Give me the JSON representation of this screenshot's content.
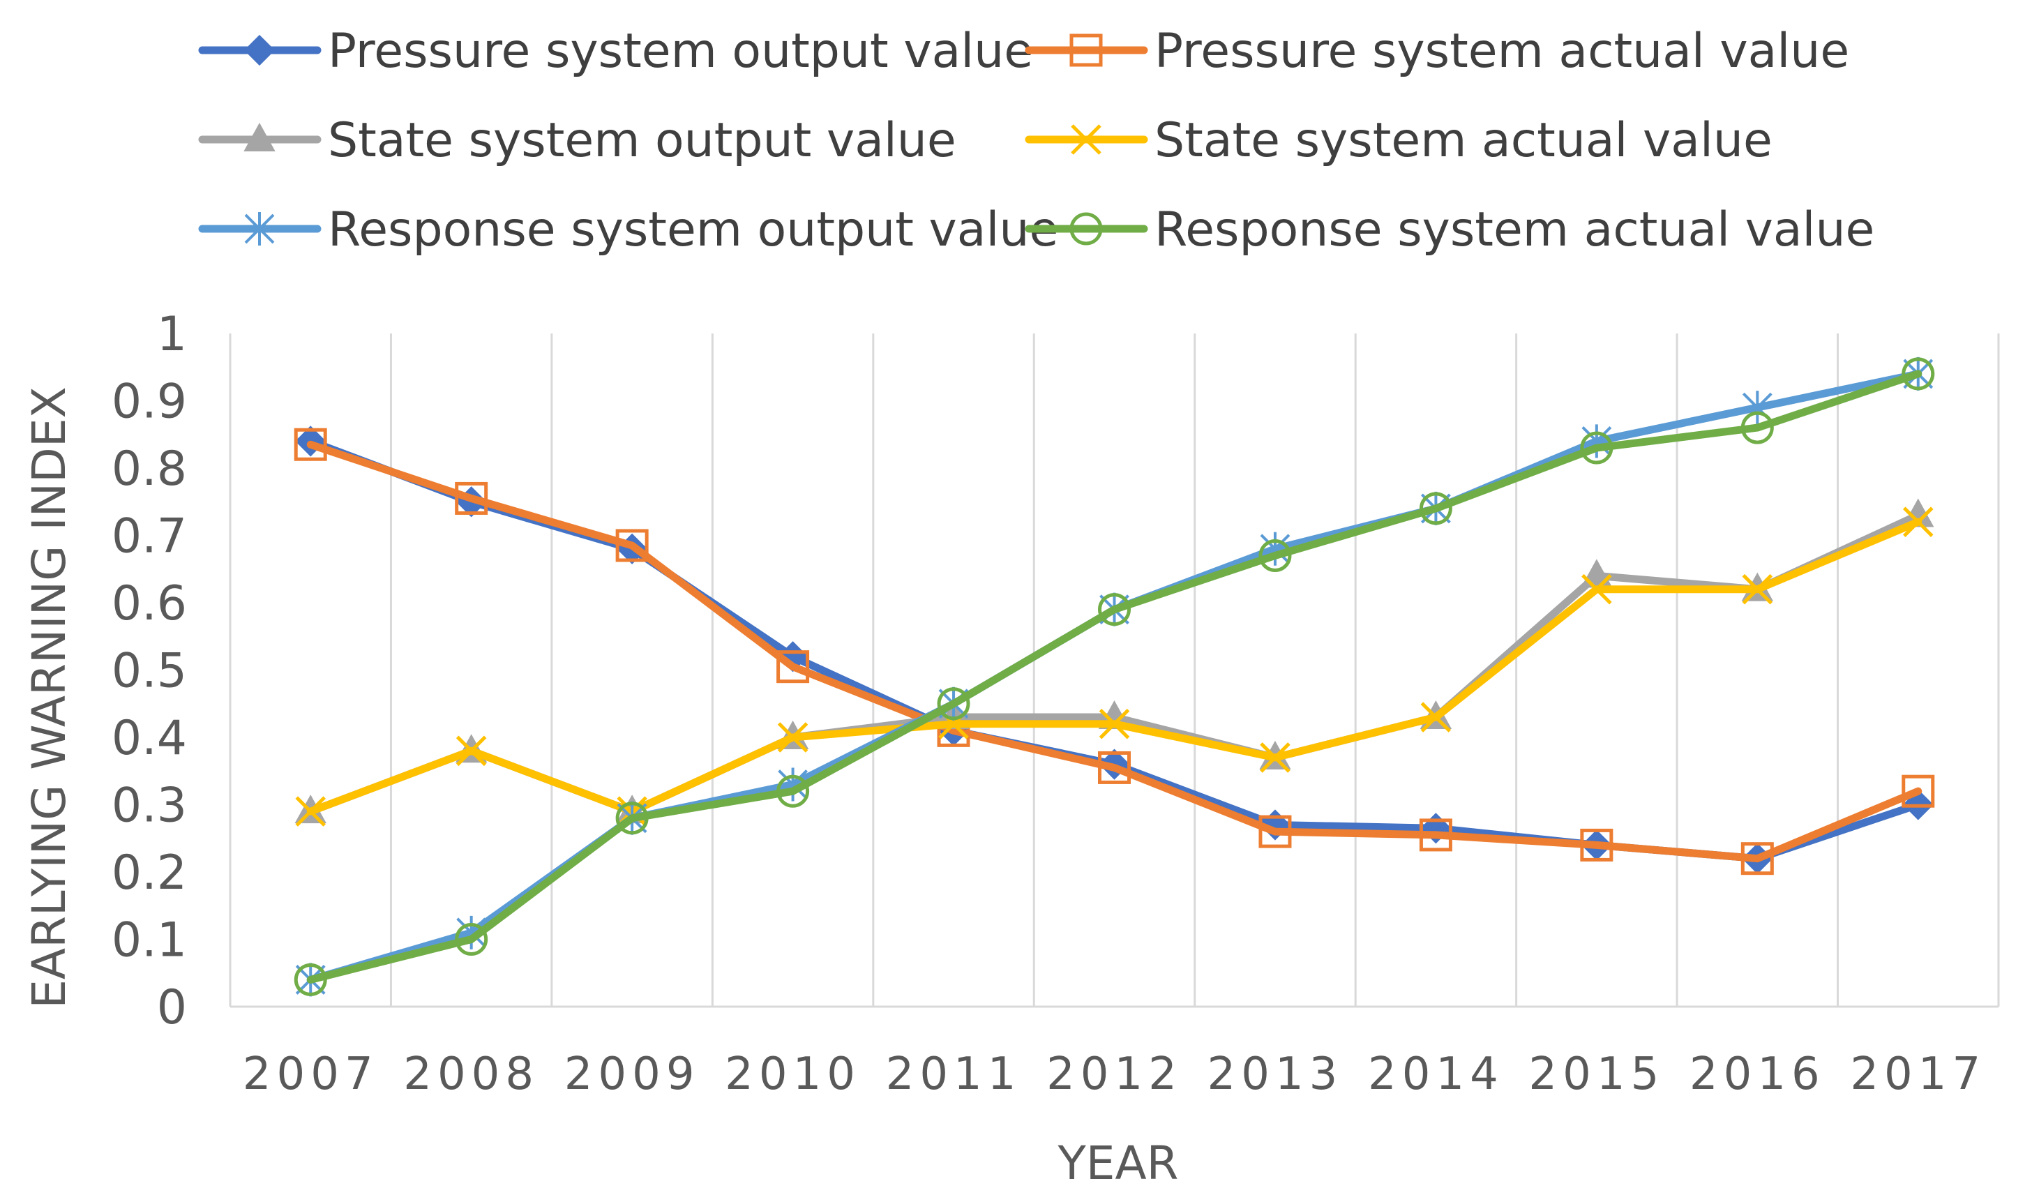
{
  "chart_data": {
    "type": "line",
    "title": "",
    "xlabel": "YEAR",
    "ylabel": "EARLYING WARNING INDEX",
    "categories": [
      "2007",
      "2008",
      "2009",
      "2010",
      "2011",
      "2012",
      "2013",
      "2014",
      "2015",
      "2016",
      "2017"
    ],
    "ylim": [
      0,
      1
    ],
    "yticks": [
      "0",
      "0.1",
      "0.2",
      "0.3",
      "0.4",
      "0.5",
      "0.6",
      "0.7",
      "0.8",
      "0.9",
      "1"
    ],
    "grid": "vertical",
    "legend_position": "top",
    "series": [
      {
        "name": "Pressure system output value",
        "color": "#4472C4",
        "marker": "diamond",
        "values": [
          0.84,
          0.75,
          0.68,
          0.52,
          0.41,
          0.36,
          0.27,
          0.265,
          0.24,
          0.22,
          0.3
        ]
      },
      {
        "name": "Pressure system actual value",
        "color": "#ED7D31",
        "marker": "square",
        "values": [
          0.835,
          0.755,
          0.685,
          0.505,
          0.41,
          0.355,
          0.26,
          0.255,
          0.24,
          0.22,
          0.32
        ]
      },
      {
        "name": "State system output value",
        "color": "#A5A5A5",
        "marker": "triangle",
        "values": [
          0.29,
          0.38,
          0.29,
          0.4,
          0.43,
          0.43,
          0.37,
          0.43,
          0.64,
          0.62,
          0.73
        ]
      },
      {
        "name": "State system actual value",
        "color": "#FFC000",
        "marker": "x",
        "values": [
          0.29,
          0.38,
          0.29,
          0.4,
          0.42,
          0.42,
          0.37,
          0.43,
          0.62,
          0.62,
          0.72
        ]
      },
      {
        "name": "Response system output value",
        "color": "#5B9BD5",
        "marker": "asterisk",
        "values": [
          0.04,
          0.11,
          0.28,
          0.33,
          0.45,
          0.59,
          0.68,
          0.74,
          0.84,
          0.89,
          0.94
        ]
      },
      {
        "name": "Response system actual value",
        "color": "#70AD47",
        "marker": "circle",
        "values": [
          0.04,
          0.1,
          0.28,
          0.32,
          0.45,
          0.59,
          0.67,
          0.74,
          0.83,
          0.86,
          0.94
        ]
      }
    ]
  }
}
